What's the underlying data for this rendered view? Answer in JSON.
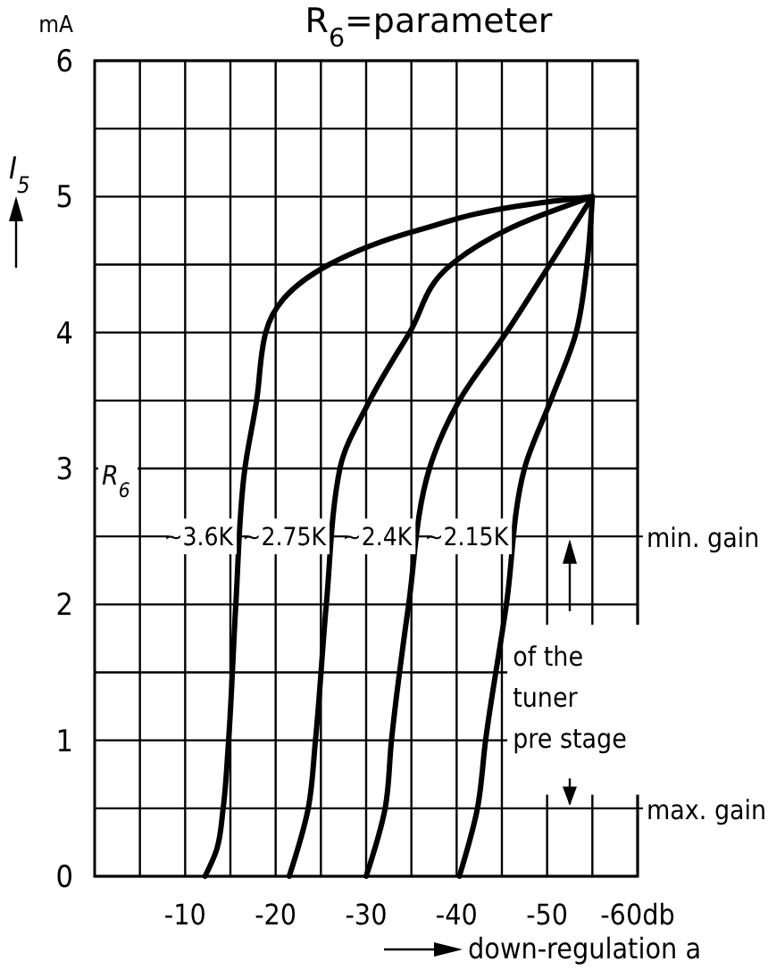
{
  "chart_data": {
    "type": "line",
    "title": "R$_{6}$=parameter",
    "xlabel": "down-regulation a",
    "ylabel": "I$_{5}$",
    "xlim": [
      0,
      -60
    ],
    "ylim": [
      0,
      6
    ],
    "xticks": [
      {
        "value": -5,
        "label": null
      },
      -10,
      {
        "value": -15,
        "label": null
      },
      -20,
      {
        "value": -25,
        "label": null
      },
      -30,
      {
        "value": -35,
        "label": null
      },
      -40,
      {
        "value": -45,
        "label": null
      },
      -50,
      {
        "value": -55,
        "label": null
      },
      {
        "value": -60,
        "label": "-60db"
      }
    ],
    "yticks": [
      0,
      {
        "value": 0.5,
        "label": null
      },
      1,
      {
        "value": 1.5,
        "label": null
      },
      2,
      {
        "value": 2.5,
        "label": null
      },
      3,
      {
        "value": 3.5,
        "label": null
      },
      4,
      {
        "value": 4.5,
        "label": null
      },
      5,
      {
        "value": 5.5,
        "label": null
      },
      6
    ],
    "grid": true,
    "marker": "none",
    "line_style": "solid",
    "series": [
      {
        "name": "~3.6K",
        "color": "#000000",
        "x": [
          -12.2,
          -13.5,
          -14.2,
          -14.8,
          -15.6,
          -16.6,
          -17.9,
          -18.9,
          -25.9,
          -35.6,
          -48.8,
          -55
        ],
        "values": [
          0,
          0.2,
          0.5,
          1,
          2,
          3,
          3.5,
          4,
          4.5,
          4.75,
          4.95,
          5
        ]
      },
      {
        "name": "~2.75K",
        "color": "#000000",
        "x": [
          -21.5,
          -23.6,
          -24.4,
          -25.6,
          -27.1,
          -30.4,
          -34.8,
          -39.4,
          -47,
          -55
        ],
        "values": [
          0,
          0.5,
          1,
          2,
          3,
          3.5,
          4,
          4.5,
          4.8,
          5
        ]
      },
      {
        "name": "~2.4K",
        "color": "#000000",
        "x": [
          -30,
          -32.1,
          -32.8,
          -34.7,
          -37,
          -40.3,
          -45.5,
          -50.3,
          -55
        ],
        "values": [
          0,
          0.5,
          1,
          2,
          3,
          3.5,
          4,
          4.5,
          5
        ]
      },
      {
        "name": "~2.15K",
        "color": "#000000",
        "x": [
          -40.3,
          -42.3,
          -43.2,
          -45.5,
          -47.5,
          -50.4,
          -53.2,
          -54.4,
          -55
        ],
        "values": [
          0,
          0.5,
          1,
          2,
          3,
          3.5,
          4,
          4.5,
          5
        ]
      }
    ],
    "annotations": [
      "R$_{6}$",
      "min. gain",
      "max. gain",
      "of the\ntuner\npre stage",
      "mA"
    ]
  }
}
